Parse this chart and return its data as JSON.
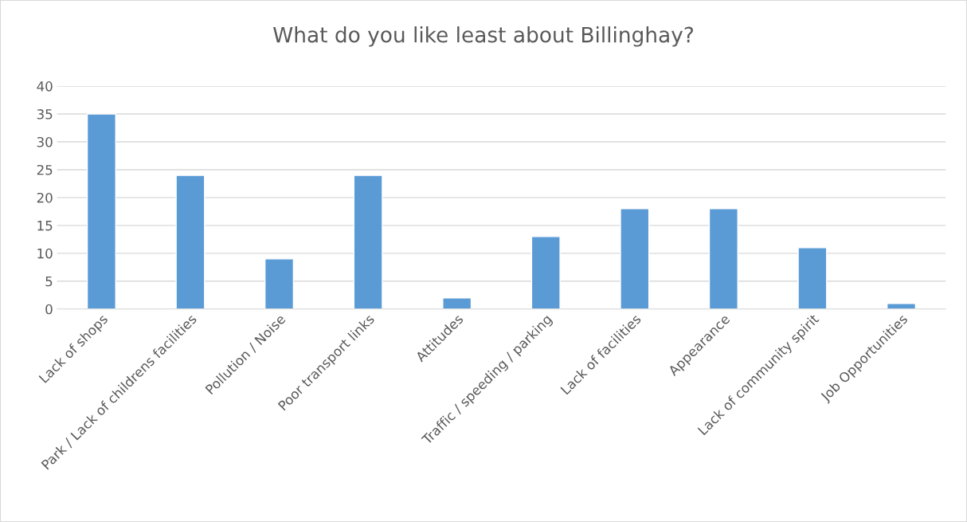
{
  "chart_data": {
    "type": "bar",
    "title": "What do you like least about Billinghay?",
    "categories": [
      "Lack of shops",
      "Park / Lack of childrens facilities",
      "Pollution / Noise",
      "Poor transport links",
      "Attitudes",
      "Traffic / speeding / parking",
      "Lack of facilities",
      "Appearance",
      "Lack of community spirit",
      "Job Opportunities"
    ],
    "values": [
      35,
      24,
      9,
      24,
      2,
      13,
      18,
      18,
      11,
      1
    ],
    "color": "#5b9bd5",
    "ylim": [
      0,
      40
    ],
    "yticks": [
      0,
      5,
      10,
      15,
      20,
      25,
      30,
      35,
      40
    ],
    "grid": "y",
    "legend": false
  }
}
